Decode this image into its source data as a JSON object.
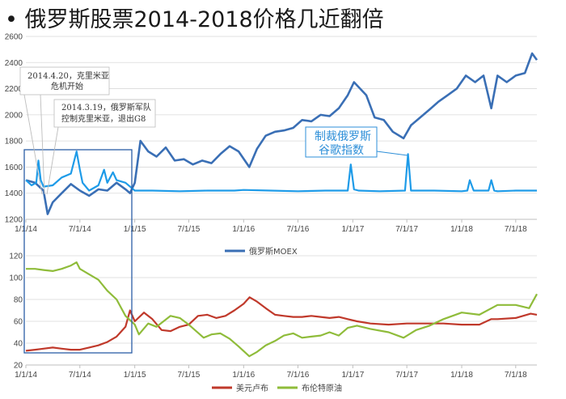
{
  "title": "• 俄罗斯股票2014-2018价格几近翻倍",
  "colors": {
    "moex": "#3a6fb5",
    "spike": "#1e9be8",
    "ruble": "#c0392b",
    "brent": "#8fbc3a",
    "box": "#2b5ea6",
    "grid": "#d9d9d9"
  },
  "chart_data": [
    {
      "type": "line",
      "title": "",
      "x_tick_labels": [
        "1/1/14",
        "7/1/14",
        "1/1/15",
        "7/1/15",
        "1/1/16",
        "7/1/16",
        "1/1/17",
        "7/1/17",
        "1/1/18",
        "7/1/18"
      ],
      "y_ticks": [
        1200,
        1400,
        1600,
        1800,
        2000,
        2200,
        2400,
        2600
      ],
      "ylim": [
        1200,
        2600
      ],
      "xlim": [
        "2014-01-01",
        "2018-09-10"
      ],
      "grid": true,
      "legend_position": "bottom",
      "series": [
        {
          "name": "俄罗斯MOEX",
          "color": "#3a6fb5",
          "x": [
            "2014-01-01",
            "2014-02-01",
            "2014-03-01",
            "2014-03-15",
            "2014-04-01",
            "2014-05-01",
            "2014-06-01",
            "2014-07-01",
            "2014-08-01",
            "2014-09-01",
            "2014-10-01",
            "2014-11-01",
            "2014-12-01",
            "2014-12-16",
            "2015-01-01",
            "2015-01-20",
            "2015-02-15",
            "2015-03-15",
            "2015-04-15",
            "2015-05-15",
            "2015-06-15",
            "2015-07-15",
            "2015-08-15",
            "2015-09-15",
            "2015-10-15",
            "2015-11-15",
            "2015-12-15",
            "2016-01-20",
            "2016-02-15",
            "2016-03-15",
            "2016-04-15",
            "2016-05-15",
            "2016-06-15",
            "2016-07-15",
            "2016-08-15",
            "2016-09-15",
            "2016-10-15",
            "2016-11-15",
            "2016-12-15",
            "2017-01-05",
            "2017-02-15",
            "2017-03-15",
            "2017-04-15",
            "2017-05-15",
            "2017-06-20",
            "2017-07-15",
            "2017-08-15",
            "2017-09-15",
            "2017-10-15",
            "2017-11-15",
            "2017-12-15",
            "2018-01-15",
            "2018-02-15",
            "2018-03-15",
            "2018-04-10",
            "2018-05-01",
            "2018-06-01",
            "2018-07-01",
            "2018-08-01",
            "2018-08-25",
            "2018-09-10"
          ],
          "y": [
            1500,
            1480,
            1420,
            1240,
            1330,
            1400,
            1470,
            1420,
            1380,
            1430,
            1420,
            1480,
            1430,
            1400,
            1480,
            1800,
            1720,
            1680,
            1750,
            1650,
            1660,
            1620,
            1650,
            1630,
            1700,
            1760,
            1720,
            1600,
            1740,
            1840,
            1870,
            1880,
            1900,
            1960,
            1950,
            2000,
            1990,
            2050,
            2150,
            2250,
            2150,
            1980,
            1960,
            1870,
            1820,
            1920,
            1980,
            2040,
            2100,
            2150,
            2200,
            2300,
            2250,
            2300,
            2050,
            2300,
            2250,
            2300,
            2320,
            2470,
            2420
          ]
        },
        {
          "name": "",
          "color": "#1e9be8",
          "x": [
            "2014-01-01",
            "2014-01-20",
            "2014-02-05",
            "2014-02-12",
            "2014-02-20",
            "2014-03-01",
            "2014-04-01",
            "2014-05-01",
            "2014-06-01",
            "2014-06-20",
            "2014-07-01",
            "2014-07-10",
            "2014-08-01",
            "2014-09-01",
            "2014-09-20",
            "2014-10-01",
            "2014-10-20",
            "2014-11-01",
            "2014-12-01",
            "2015-01-01",
            "2015-03-01",
            "2015-06-01",
            "2015-09-01",
            "2015-12-01",
            "2016-01-01",
            "2016-04-01",
            "2016-07-01",
            "2016-10-01",
            "2016-12-15",
            "2016-12-25",
            "2017-01-05",
            "2017-01-20",
            "2017-04-01",
            "2017-06-25",
            "2017-07-05",
            "2017-07-15",
            "2017-10-01",
            "2018-01-01",
            "2018-01-20",
            "2018-01-28",
            "2018-02-10",
            "2018-04-01",
            "2018-04-10",
            "2018-04-20",
            "2018-05-01",
            "2018-07-01",
            "2018-09-10"
          ],
          "y": [
            1500,
            1460,
            1480,
            1650,
            1500,
            1450,
            1460,
            1520,
            1550,
            1720,
            1580,
            1480,
            1420,
            1460,
            1580,
            1480,
            1560,
            1500,
            1480,
            1420,
            1420,
            1415,
            1420,
            1420,
            1425,
            1420,
            1415,
            1420,
            1420,
            1620,
            1430,
            1420,
            1415,
            1420,
            1700,
            1420,
            1420,
            1415,
            1420,
            1500,
            1420,
            1420,
            1500,
            1420,
            1415,
            1420,
            1420
          ]
        }
      ]
    },
    {
      "type": "line",
      "title": "",
      "x_tick_labels": [
        "1/1/14",
        "7/1/14",
        "1/1/15",
        "7/1/15",
        "1/1/16",
        "7/1/16",
        "1/1/17",
        "7/1/17",
        "1/1/18",
        "7/1/18"
      ],
      "y_ticks": [
        20,
        40,
        60,
        80,
        100,
        120
      ],
      "ylim": [
        20,
        120
      ],
      "xlim": [
        "2014-01-01",
        "2018-09-10"
      ],
      "grid": true,
      "legend_position": "bottom",
      "series": [
        {
          "name": "美元卢布",
          "color": "#c0392b",
          "x": [
            "2014-01-01",
            "2014-02-01",
            "2014-03-01",
            "2014-04-01",
            "2014-05-01",
            "2014-06-01",
            "2014-07-01",
            "2014-08-01",
            "2014-09-01",
            "2014-10-01",
            "2014-11-01",
            "2014-12-01",
            "2014-12-16",
            "2015-01-01",
            "2015-02-01",
            "2015-03-01",
            "2015-04-01",
            "2015-05-01",
            "2015-06-01",
            "2015-07-01",
            "2015-08-01",
            "2015-09-01",
            "2015-10-01",
            "2015-11-01",
            "2015-12-01",
            "2016-01-01",
            "2016-01-21",
            "2016-02-15",
            "2016-03-15",
            "2016-04-15",
            "2016-05-15",
            "2016-06-15",
            "2016-07-15",
            "2016-08-15",
            "2016-09-15",
            "2016-10-15",
            "2016-11-15",
            "2016-12-15",
            "2017-01-15",
            "2017-03-01",
            "2017-05-01",
            "2017-07-01",
            "2017-09-01",
            "2017-11-01",
            "2018-01-01",
            "2018-03-01",
            "2018-04-10",
            "2018-05-01",
            "2018-07-01",
            "2018-08-20",
            "2018-09-10"
          ],
          "y": [
            33,
            34,
            35,
            36,
            35,
            34,
            34,
            36,
            38,
            41,
            46,
            55,
            70,
            60,
            68,
            62,
            52,
            51,
            55,
            57,
            65,
            66,
            63,
            65,
            70,
            76,
            82,
            78,
            72,
            66,
            65,
            64,
            64,
            65,
            64,
            63,
            64,
            62,
            60,
            58,
            57,
            58,
            58,
            58,
            57,
            57,
            62,
            62,
            63,
            67,
            66
          ]
        },
        {
          "name": "布伦特原油",
          "color": "#8fbc3a",
          "x": [
            "2014-01-01",
            "2014-02-01",
            "2014-03-01",
            "2014-04-01",
            "2014-05-01",
            "2014-06-01",
            "2014-06-20",
            "2014-07-01",
            "2014-08-01",
            "2014-09-01",
            "2014-10-01",
            "2014-11-01",
            "2014-12-01",
            "2015-01-01",
            "2015-01-15",
            "2015-02-15",
            "2015-03-15",
            "2015-05-01",
            "2015-06-01",
            "2015-07-01",
            "2015-08-20",
            "2015-09-15",
            "2015-10-15",
            "2015-11-15",
            "2015-12-15",
            "2016-01-20",
            "2016-02-15",
            "2016-03-15",
            "2016-04-15",
            "2016-05-15",
            "2016-06-15",
            "2016-07-15",
            "2016-08-15",
            "2016-09-15",
            "2016-10-15",
            "2016-11-15",
            "2016-12-15",
            "2017-01-15",
            "2017-03-01",
            "2017-05-01",
            "2017-06-20",
            "2017-08-01",
            "2017-09-15",
            "2017-11-01",
            "2018-01-01",
            "2018-03-01",
            "2018-05-01",
            "2018-07-01",
            "2018-08-15",
            "2018-09-10"
          ],
          "y": [
            108,
            108,
            107,
            106,
            108,
            111,
            114,
            108,
            103,
            98,
            88,
            80,
            65,
            57,
            48,
            58,
            55,
            65,
            63,
            57,
            45,
            48,
            49,
            44,
            37,
            28,
            32,
            38,
            42,
            47,
            49,
            45,
            46,
            47,
            50,
            47,
            54,
            56,
            53,
            50,
            45,
            52,
            56,
            62,
            68,
            66,
            75,
            75,
            72,
            85
          ]
        }
      ]
    }
  ],
  "annotations": {
    "crimea_crisis": [
      "2014.4.20，克里米亚",
      "危机开始"
    ],
    "crimea_control": [
      "2014.3.19，俄罗斯军队",
      "控制克里米亚，退出G8"
    ],
    "sanctions": [
      "制裁俄罗斯",
      "谷歌指数"
    ]
  }
}
